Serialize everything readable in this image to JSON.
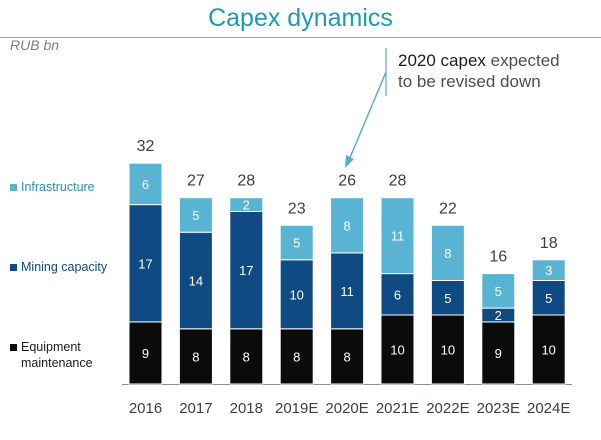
{
  "header": {
    "title": "Capex dynamics",
    "unit": "RUB bn"
  },
  "annotation": {
    "highlight": "2020 capex",
    "rest_line1": " expected",
    "rest_line2": "to be revised down"
  },
  "colors": {
    "equipment": "#0b0b0b",
    "mining": "#0f4a82",
    "infrastructure": "#58b4d2",
    "arrow": "#5aaecb"
  },
  "chart_data": {
    "type": "bar",
    "stacked": true,
    "title": "Capex dynamics",
    "ylabel": "RUB bn",
    "categories": [
      "2016",
      "2017",
      "2018",
      "2019E",
      "2020E",
      "2021E",
      "2022E",
      "2023E",
      "2024E"
    ],
    "series": [
      {
        "name": "Equipment maintenance",
        "values": [
          9,
          8,
          8,
          8,
          8,
          10,
          10,
          9,
          10
        ]
      },
      {
        "name": "Mining capacity",
        "values": [
          17,
          14,
          17,
          10,
          11,
          6,
          5,
          2,
          5
        ]
      },
      {
        "name": "Infrastructure",
        "values": [
          6,
          5,
          2,
          5,
          8,
          11,
          8,
          5,
          3
        ]
      }
    ],
    "totals": [
      32,
      27,
      28,
      23,
      26,
      28,
      22,
      16,
      18
    ],
    "legend_labels": {
      "infrastructure": "Infrastructure",
      "mining": "Mining capacity",
      "equipment_line1": "Equipment",
      "equipment_line2": "maintenance"
    },
    "legend_position": "left",
    "grid": false
  }
}
